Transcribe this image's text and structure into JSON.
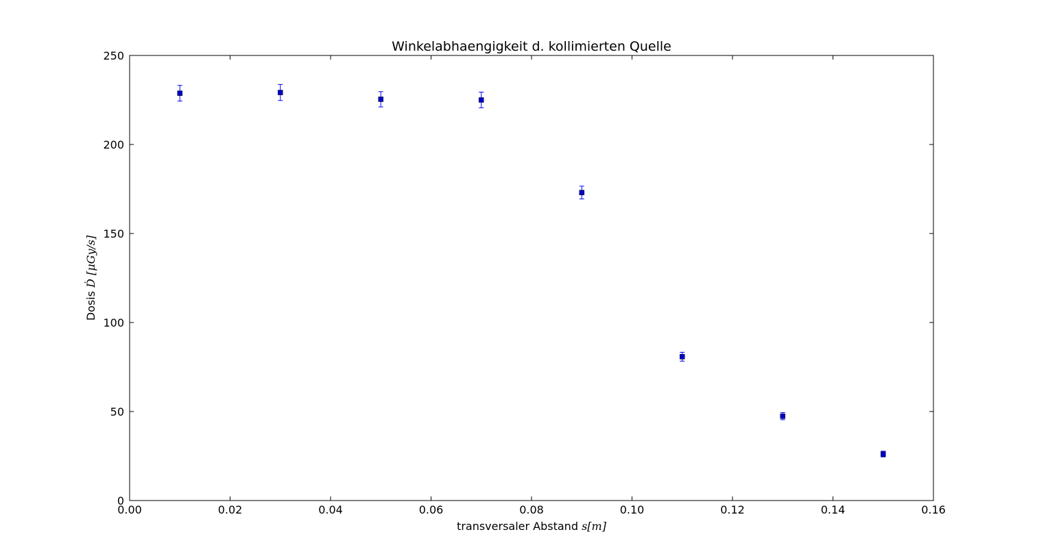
{
  "chart_data": {
    "type": "scatter",
    "title": "Winkelabhaengigkeit d. kollimierten Quelle",
    "xlabel": "transversaler Abstand s[m]",
    "xlabel_text": "transversaler Abstand ",
    "xlabel_math": "s[m]",
    "ylabel": "Dosis Ḋ [μGy/s]",
    "ylabel_text": "Dosis ",
    "ylabel_math": "Ḋ [μGy/s]",
    "xlim": [
      0,
      0.16
    ],
    "ylim": [
      0,
      250
    ],
    "xticks": [
      "0.00",
      "0.02",
      "0.04",
      "0.06",
      "0.08",
      "0.10",
      "0.12",
      "0.14",
      "0.16"
    ],
    "yticks": [
      "0",
      "50",
      "100",
      "150",
      "200",
      "250"
    ],
    "grid": false,
    "legend": "none",
    "marker_color": "#0000cc",
    "errorbar_color": "#0000ff",
    "series": [
      {
        "x": [
          0.01,
          0.03,
          0.05,
          0.07,
          0.09,
          0.11,
          0.13,
          0.15
        ],
        "y": [
          228.8,
          229.2,
          225.4,
          225.0,
          173.0,
          80.8,
          47.4,
          26.1
        ],
        "yerr": [
          4.4,
          4.5,
          4.3,
          4.4,
          3.6,
          2.5,
          2.0,
          1.6
        ]
      }
    ]
  }
}
